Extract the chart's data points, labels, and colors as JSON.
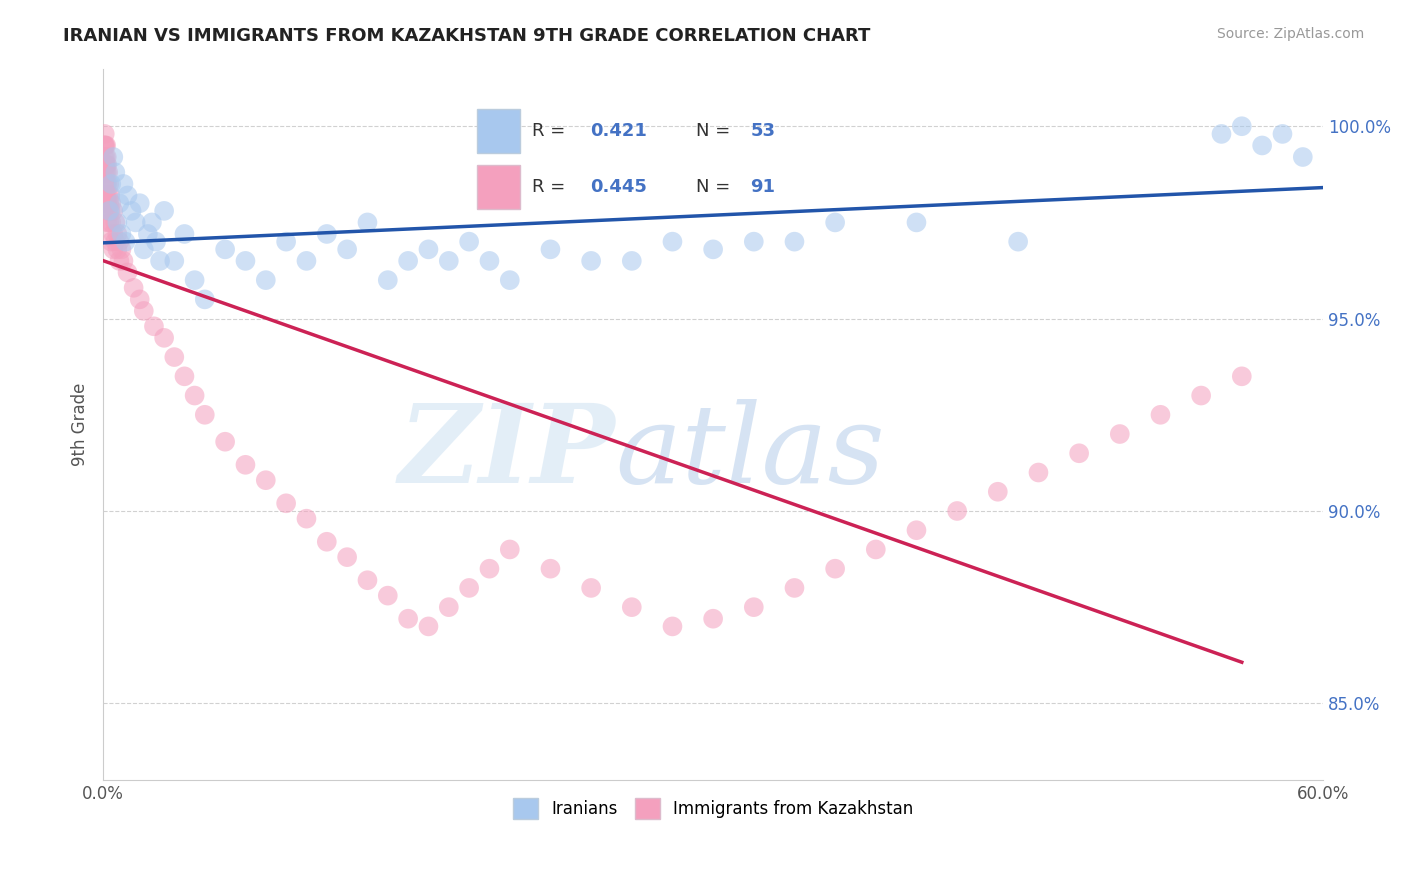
{
  "title": "IRANIAN VS IMMIGRANTS FROM KAZAKHSTAN 9TH GRADE CORRELATION CHART",
  "source_text": "Source: ZipAtlas.com",
  "ylabel": "9th Grade",
  "xlim": [
    0.0,
    60.0
  ],
  "ylim": [
    83.0,
    101.5
  ],
  "y_ticks": [
    85.0,
    90.0,
    95.0,
    100.0
  ],
  "y_tick_labels": [
    "85.0%",
    "90.0%",
    "95.0%",
    "100.0%"
  ],
  "blue_color": "#A8C8EE",
  "pink_color": "#F4A0BE",
  "blue_line_color": "#2255AA",
  "pink_line_color": "#CC2255",
  "watermark_zip": "ZIP",
  "watermark_atlas": "atlas",
  "legend_r1_val": "0.421",
  "legend_n1_val": "53",
  "legend_r2_val": "0.445",
  "legend_n2_val": "91",
  "blue_scatter_x": [
    0.3,
    0.4,
    0.5,
    0.6,
    0.7,
    0.8,
    0.9,
    1.0,
    1.1,
    1.2,
    1.4,
    1.6,
    1.8,
    2.0,
    2.2,
    2.4,
    2.6,
    2.8,
    3.0,
    3.5,
    4.0,
    4.5,
    5.0,
    6.0,
    7.0,
    8.0,
    9.0,
    10.0,
    11.0,
    12.0,
    13.0,
    14.0,
    15.0,
    16.0,
    17.0,
    18.0,
    19.0,
    20.0,
    22.0,
    24.0,
    26.0,
    28.0,
    30.0,
    32.0,
    34.0,
    36.0,
    40.0,
    45.0,
    55.0,
    56.0,
    57.0,
    58.0,
    59.0
  ],
  "blue_scatter_y": [
    97.8,
    98.5,
    99.2,
    98.8,
    97.5,
    98.0,
    97.2,
    98.5,
    97.0,
    98.2,
    97.8,
    97.5,
    98.0,
    96.8,
    97.2,
    97.5,
    97.0,
    96.5,
    97.8,
    96.5,
    97.2,
    96.0,
    95.5,
    96.8,
    96.5,
    96.0,
    97.0,
    96.5,
    97.2,
    96.8,
    97.5,
    96.0,
    96.5,
    96.8,
    96.5,
    97.0,
    96.5,
    96.0,
    96.8,
    96.5,
    96.5,
    97.0,
    96.8,
    97.0,
    97.0,
    97.5,
    97.5,
    97.0,
    99.8,
    100.0,
    99.5,
    99.8,
    99.2
  ],
  "pink_scatter_x": [
    0.05,
    0.05,
    0.05,
    0.05,
    0.05,
    0.08,
    0.08,
    0.08,
    0.1,
    0.1,
    0.1,
    0.1,
    0.12,
    0.12,
    0.12,
    0.15,
    0.15,
    0.15,
    0.15,
    0.18,
    0.18,
    0.18,
    0.2,
    0.2,
    0.2,
    0.2,
    0.25,
    0.25,
    0.25,
    0.3,
    0.3,
    0.3,
    0.35,
    0.35,
    0.4,
    0.4,
    0.4,
    0.5,
    0.5,
    0.5,
    0.6,
    0.6,
    0.7,
    0.7,
    0.8,
    0.8,
    0.9,
    1.0,
    1.2,
    1.5,
    1.8,
    2.0,
    2.5,
    3.0,
    3.5,
    4.0,
    4.5,
    5.0,
    6.0,
    7.0,
    8.0,
    9.0,
    10.0,
    11.0,
    12.0,
    13.0,
    14.0,
    15.0,
    16.0,
    17.0,
    18.0,
    19.0,
    20.0,
    22.0,
    24.0,
    26.0,
    28.0,
    30.0,
    32.0,
    34.0,
    36.0,
    38.0,
    40.0,
    42.0,
    44.0,
    46.0,
    48.0,
    50.0,
    52.0,
    54.0,
    56.0
  ],
  "pink_scatter_y": [
    99.5,
    99.2,
    98.8,
    98.5,
    98.0,
    99.8,
    99.5,
    99.0,
    99.5,
    99.0,
    98.5,
    98.0,
    99.2,
    98.8,
    98.2,
    99.5,
    99.0,
    98.5,
    98.0,
    99.2,
    98.8,
    98.2,
    99.0,
    98.5,
    98.0,
    97.5,
    98.8,
    98.2,
    97.8,
    98.5,
    98.0,
    97.5,
    98.2,
    97.8,
    98.0,
    97.5,
    97.0,
    97.8,
    97.2,
    96.8,
    97.5,
    97.0,
    97.2,
    96.8,
    97.0,
    96.5,
    96.8,
    96.5,
    96.2,
    95.8,
    95.5,
    95.2,
    94.8,
    94.5,
    94.0,
    93.5,
    93.0,
    92.5,
    91.8,
    91.2,
    90.8,
    90.2,
    89.8,
    89.2,
    88.8,
    88.2,
    87.8,
    87.2,
    87.0,
    87.5,
    88.0,
    88.5,
    89.0,
    88.5,
    88.0,
    87.5,
    87.0,
    87.2,
    87.5,
    88.0,
    88.5,
    89.0,
    89.5,
    90.0,
    90.5,
    91.0,
    91.5,
    92.0,
    92.5,
    93.0,
    93.5
  ]
}
